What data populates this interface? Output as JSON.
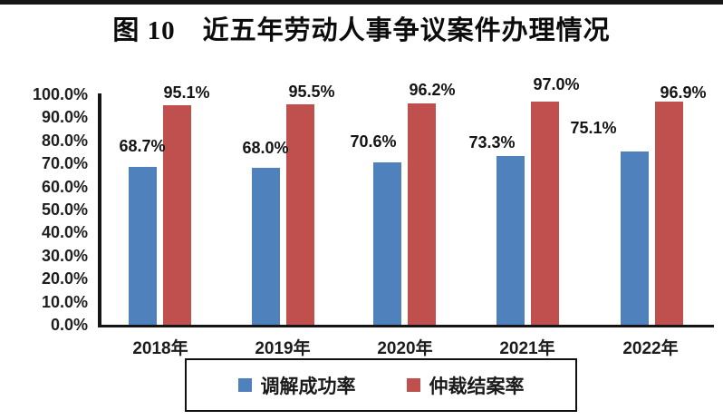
{
  "page_title": "图 10　近五年劳动人事争议案件办理情况",
  "chart_data": {
    "type": "bar",
    "title": "图 10　近五年劳动人事争议案件办理情况",
    "categories": [
      "2018年",
      "2019年",
      "2020年",
      "2021年",
      "2022年"
    ],
    "series": [
      {
        "name": "调解成功率",
        "color": "#4F81BD",
        "values": [
          68.7,
          68.0,
          70.6,
          73.3,
          75.1
        ],
        "labels": [
          "68.7%",
          "68.0%",
          "70.6%",
          "73.3%",
          "75.1%"
        ]
      },
      {
        "name": "仲裁结案率",
        "color": "#C0504D",
        "values": [
          95.1,
          95.5,
          96.2,
          97.0,
          96.9
        ],
        "labels": [
          "95.1%",
          "95.5%",
          "96.2%",
          "97.0%",
          "96.9%"
        ]
      }
    ],
    "y_axis": {
      "min": 0,
      "max": 100,
      "tick_labels": [
        "100.0%",
        "90.0%",
        "80.0%",
        "70.0%",
        "60.0%",
        "50.0%",
        "40.0%",
        "30.0%",
        "20.0%",
        "10.0%",
        "0.0%"
      ]
    },
    "legend": {
      "position": "bottom",
      "items": [
        "调解成功率",
        "仲裁结案率"
      ]
    },
    "grid": false,
    "axis_color": "#151515"
  }
}
